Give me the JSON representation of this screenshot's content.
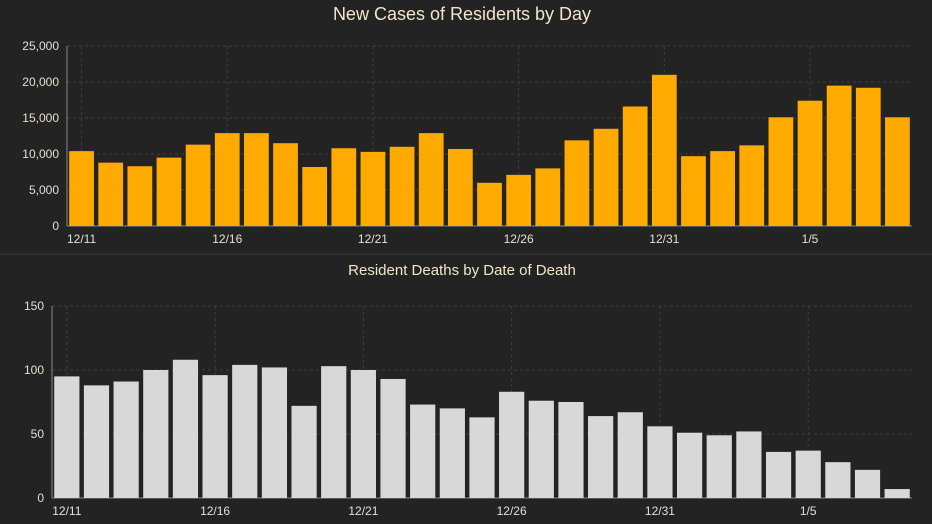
{
  "colors": {
    "background": "#232323",
    "cases_bar": "#ffaa00",
    "deaths_bar": "#d8d8d8",
    "text": "#e6e0d0",
    "title": "#f1e6c8"
  },
  "chart_data": [
    {
      "type": "bar",
      "title": "New Cases of Residents by Day",
      "xlabel": "",
      "ylabel": "",
      "ylim": [
        0,
        25000
      ],
      "yticks": [
        "0",
        "5,000",
        "10,000",
        "15,000",
        "20,000",
        "25,000"
      ],
      "ytick_values": [
        0,
        5000,
        10000,
        15000,
        20000,
        25000
      ],
      "x_tick_labels": [
        "12/11",
        "12/16",
        "12/21",
        "12/26",
        "12/31",
        "1/5"
      ],
      "x_tick_indices": [
        0,
        5,
        10,
        15,
        20,
        25
      ],
      "grid": true,
      "values": [
        10400,
        8800,
        8300,
        9500,
        11300,
        12900,
        12900,
        11500,
        8200,
        10800,
        10300,
        11000,
        12900,
        10700,
        6000,
        7100,
        8000,
        11900,
        13500,
        16600,
        21000,
        9700,
        10400,
        11200,
        15100,
        17400,
        19500,
        19200,
        15100
      ]
    },
    {
      "type": "bar",
      "title": "Resident Deaths by Date of Death",
      "xlabel": "",
      "ylabel": "",
      "ylim": [
        0,
        150
      ],
      "yticks": [
        "0",
        "50",
        "100",
        "150"
      ],
      "ytick_values": [
        0,
        50,
        100,
        150
      ],
      "x_tick_labels": [
        "12/11",
        "12/16",
        "12/21",
        "12/26",
        "12/31",
        "1/5"
      ],
      "x_tick_indices": [
        0,
        5,
        10,
        15,
        20,
        25
      ],
      "grid": true,
      "values": [
        95,
        88,
        91,
        100,
        108,
        96,
        104,
        102,
        72,
        103,
        100,
        93,
        73,
        70,
        63,
        83,
        76,
        75,
        64,
        67,
        56,
        51,
        49,
        52,
        36,
        37,
        28,
        22,
        7
      ]
    }
  ]
}
